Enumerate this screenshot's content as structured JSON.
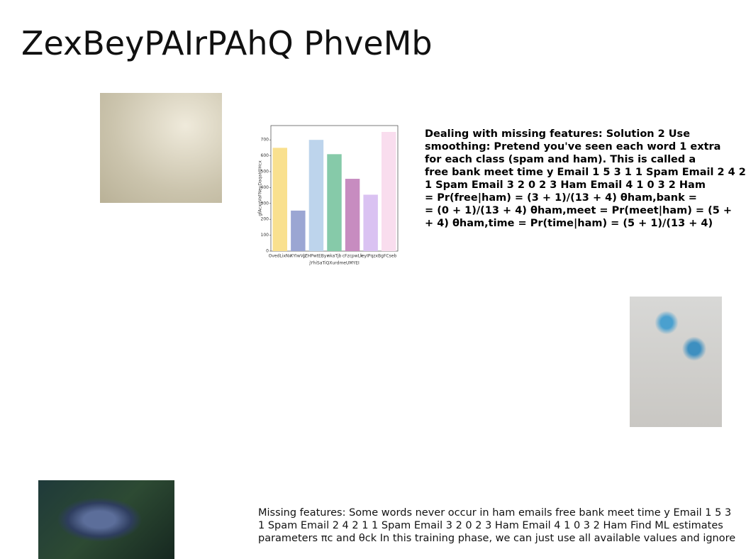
{
  "title": "ZexBeyPAIrPAhQ PhveMb",
  "body_bold": {
    "lines": [
      "Dealing with missing features: Solution 2 Use",
      "smoothing: Pretend you've seen each word 1 extra",
      "for each class (spam and ham). This is called a",
      "free bank meet time y Email 1 5 3 1 1 Spam Email 2 4 2",
      "1 Spam Email 3 2 0 2 3 Ham Email 4 1 0 3 2 Ham",
      "= Pr(free|ham) = (3 + 1)/(13 + 4) θham,bank =",
      "= (0 + 1)/(13 + 4) θham,meet = Pr(meet|ham) = (5 +",
      "+ 4) θham,time = Pr(time|ham) = (5 + 1)/(13 + 4)"
    ]
  },
  "body_bottom": {
    "lines": [
      "Missing features: Some words never occur in ham emails free bank meet time y Email 1 5 3",
      "1 Spam Email 2 4 2 1 1 Spam Email 3 2 0 2 3 Ham Email 4 1 0 3 2 Ham Find ML estimates",
      "parameters πc and θck In this training phase, we can just use all available values and ignore"
    ]
  },
  "chart_data": {
    "type": "bar",
    "categories": [
      "OvedLixNx",
      "XYIwVp",
      "jZHPwtEByv",
      "nkaTjb",
      "cFzcpwLk",
      "leyIPqzxB",
      "gFCseb"
    ],
    "values": [
      650,
      255,
      700,
      610,
      455,
      355,
      750
    ],
    "colors": [
      "#f9e08e",
      "#9ba6d3",
      "#bdd4ec",
      "#86caa9",
      "#c78cc0",
      "#dac2f2",
      "#f9ddee"
    ],
    "xlabel": "jYhiSaTiQXurdmeUMYEI",
    "ylabel": "gfAcxgVaFNeuDaqaHJIHcx",
    "ylim": [
      0,
      790
    ],
    "yticks": [
      0,
      100,
      200,
      300,
      400,
      500,
      600,
      700
    ]
  }
}
